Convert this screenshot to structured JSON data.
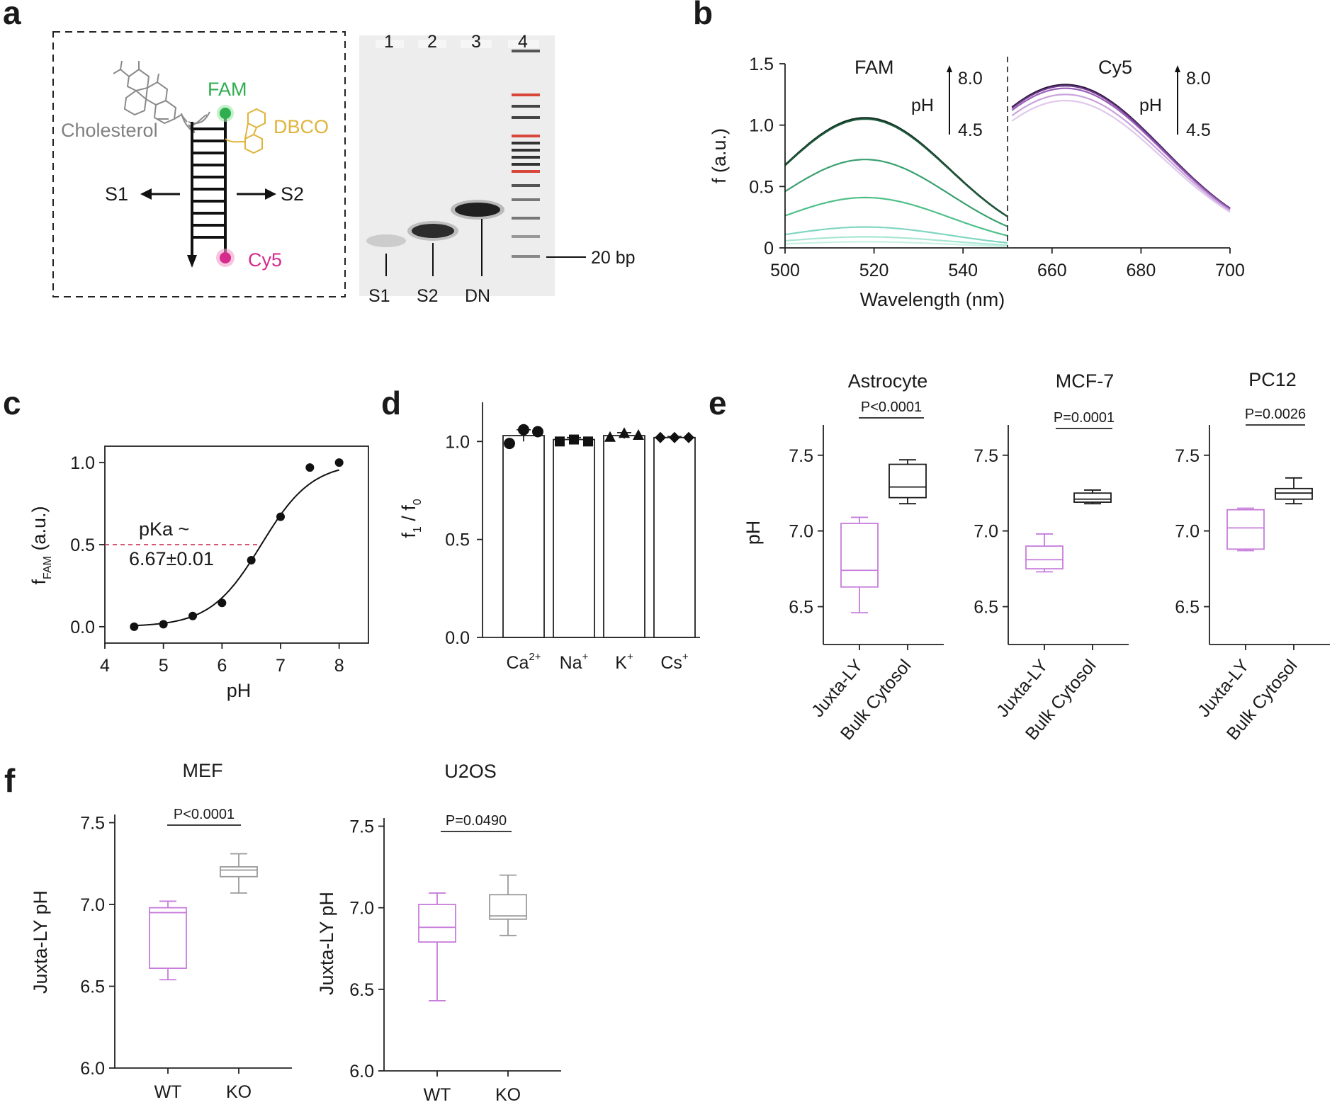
{
  "panels": {
    "a": {
      "letter": "a",
      "labels": {
        "fam": "FAM",
        "cholesterol": "Cholesterol",
        "dbco": "DBCO",
        "s1": "S1",
        "s2": "S2",
        "cy5": "Cy5"
      },
      "gel": {
        "lanes": [
          "1",
          "2",
          "3",
          "4"
        ],
        "bottom_labels": [
          "S1",
          "S2",
          "DN"
        ],
        "marker_label": "20 bp"
      }
    },
    "b": {
      "letter": "b"
    },
    "c": {
      "letter": "c"
    },
    "d": {
      "letter": "d"
    },
    "e": {
      "letter": "e"
    },
    "f": {
      "letter": "f"
    }
  },
  "colors": {
    "fam_green": "#2fae4f",
    "cy5_magenta": "#d62b8c",
    "dbco_yellow": "#e0b33a",
    "cholesterol_gray": "#808080",
    "juxta_purple": "#c77ddb",
    "ko_gray": "#9a9a9a",
    "red_dash": "#d04060"
  },
  "chart_data": [
    {
      "id": "b-FAM",
      "type": "line",
      "title": "FAM",
      "xlabel": "Wavelength (nm)",
      "ylabel": "f (a.u.)",
      "xlim": [
        500,
        550
      ],
      "ylim": [
        0,
        1.5
      ],
      "xticks": [
        500,
        520,
        540
      ],
      "yticks": [
        0,
        0.5,
        1.0,
        1.5
      ],
      "ytick_labels": [
        "0",
        "0.5",
        "1.0",
        "1.5"
      ],
      "annotation": {
        "ph_label": "pH",
        "top": "8.0",
        "bottom": "4.5"
      },
      "series": [
        {
          "peak": 1.06,
          "color": "#0f2a1e"
        },
        {
          "peak": 1.05,
          "color": "#1e5a3c"
        },
        {
          "peak": 0.72,
          "color": "#3aa070"
        },
        {
          "peak": 0.41,
          "color": "#4fbf88"
        },
        {
          "peak": 0.17,
          "color": "#7fd6c0"
        },
        {
          "peak": 0.09,
          "color": "#a8e6d4"
        },
        {
          "peak": 0.05,
          "color": "#c9f0e4"
        }
      ],
      "peak_x": 518
    },
    {
      "id": "b-Cy5",
      "type": "line",
      "title": "Cy5",
      "xlim": [
        650,
        700
      ],
      "ylim": [
        0,
        1.5
      ],
      "xticks": [
        660,
        680,
        700
      ],
      "annotation": {
        "ph_label": "pH",
        "top": "8.0",
        "bottom": "4.5"
      },
      "series": [
        {
          "peak": 1.33,
          "color": "#2a1438"
        },
        {
          "peak": 1.32,
          "color": "#6b3a8a"
        },
        {
          "peak": 1.3,
          "color": "#9a5fb8"
        },
        {
          "peak": 1.25,
          "color": "#c9a2dc"
        },
        {
          "peak": 1.2,
          "color": "#e0c8ec"
        }
      ],
      "peak_x": 663
    },
    {
      "id": "c",
      "type": "scatter",
      "xlabel": "pH",
      "ylabel": "f",
      "ylabel_sub": "FAM",
      "ylabel_rest": " (a.u.)",
      "xlim": [
        4,
        8.5
      ],
      "ylim": [
        -0.1,
        1.1
      ],
      "xticks": [
        4,
        5,
        6,
        7,
        8
      ],
      "yticks": [
        0.0,
        0.5,
        1.0
      ],
      "ytick_labels": [
        "0.0",
        "0.5",
        "1.0"
      ],
      "x": [
        4.5,
        5.0,
        5.5,
        6.0,
        6.5,
        7.0,
        7.5,
        8.0
      ],
      "y": [
        0.0,
        0.015,
        0.065,
        0.145,
        0.405,
        0.67,
        0.97,
        1.0
      ],
      "pka_text_1": "pKa ~",
      "pka_text_2": "6.67±0.01",
      "pka_line_y": 0.5
    },
    {
      "id": "d",
      "type": "bar",
      "ylabel": "f / f",
      "ylabel_sub1": "1",
      "ylabel_sub0": "0",
      "categories": [
        "Ca2+",
        "Na+",
        "K+",
        "Cs+"
      ],
      "category_base": [
        "Ca",
        "Na",
        "K",
        "Cs"
      ],
      "category_sup": [
        "2+",
        "+",
        "+",
        "+"
      ],
      "values": [
        1.03,
        1.01,
        1.03,
        1.02
      ],
      "errors": [
        0.03,
        0.01,
        0.015,
        0.005
      ],
      "points": [
        [
          0.99,
          1.06,
          1.05
        ],
        [
          1.0,
          1.01,
          1.0
        ],
        [
          1.02,
          1.04,
          1.03
        ],
        [
          1.02,
          1.02,
          1.02
        ]
      ],
      "markers": [
        "circle",
        "square",
        "triangle",
        "diamond"
      ],
      "ylim": [
        0,
        1.2
      ],
      "yticks": [
        0.0,
        0.5,
        1.0
      ],
      "ytick_labels": [
        "0.0",
        "0.5",
        "1.0"
      ]
    },
    {
      "id": "e-Astrocyte",
      "type": "box",
      "title": "Astrocyte",
      "ylabel": "pH",
      "ylim": [
        6.25,
        7.7
      ],
      "yticks": [
        6.5,
        7.0,
        7.5
      ],
      "ytick_labels": [
        "6.5",
        "7.0",
        "7.5"
      ],
      "categories": [
        "Juxta-LY",
        "Bulk Cytosol"
      ],
      "boxes": [
        {
          "min": 6.46,
          "q1": 6.63,
          "median": 6.74,
          "q3": 7.05,
          "max": 7.09,
          "color": "#c77ddb"
        },
        {
          "min": 7.18,
          "q1": 7.22,
          "median": 7.29,
          "q3": 7.44,
          "max": 7.47,
          "color": "#1a1a1a"
        }
      ],
      "p_value": "P<0.0001"
    },
    {
      "id": "e-MCF-7",
      "type": "box",
      "title": "MCF-7",
      "ylim": [
        6.25,
        7.7
      ],
      "yticks": [
        6.5,
        7.0,
        7.5
      ],
      "ytick_labels": [
        "6.5",
        "7.0",
        "7.5"
      ],
      "categories": [
        "Juxta-LY",
        "Bulk Cytosol"
      ],
      "boxes": [
        {
          "min": 6.73,
          "q1": 6.75,
          "median": 6.81,
          "q3": 6.9,
          "max": 6.98,
          "color": "#c77ddb"
        },
        {
          "min": 7.18,
          "q1": 7.19,
          "median": 7.21,
          "q3": 7.25,
          "max": 7.27,
          "color": "#1a1a1a"
        }
      ],
      "p_value": "P=0.0001"
    },
    {
      "id": "e-PC12",
      "type": "box",
      "title": "PC12",
      "ylim": [
        6.25,
        7.7
      ],
      "yticks": [
        6.5,
        7.0,
        7.5
      ],
      "ytick_labels": [
        "6.5",
        "7.0",
        "7.5"
      ],
      "categories": [
        "Juxta-LY",
        "Bulk Cytosol"
      ],
      "boxes": [
        {
          "min": 6.87,
          "q1": 6.88,
          "median": 7.02,
          "q3": 7.14,
          "max": 7.15,
          "color": "#c77ddb"
        },
        {
          "min": 7.18,
          "q1": 7.21,
          "median": 7.25,
          "q3": 7.28,
          "max": 7.35,
          "color": "#1a1a1a"
        }
      ],
      "p_value": "P=0.0026"
    },
    {
      "id": "f-MEF",
      "type": "box",
      "title": "MEF",
      "ylabel": "Juxta-LY pH",
      "ylim": [
        6.0,
        7.55
      ],
      "yticks": [
        6.0,
        6.5,
        7.0,
        7.5
      ],
      "ytick_labels": [
        "6.0",
        "6.5",
        "7.0",
        "7.5"
      ],
      "categories": [
        "WT",
        "KO"
      ],
      "boxes": [
        {
          "min": 6.54,
          "q1": 6.61,
          "median": 6.95,
          "q3": 6.98,
          "max": 7.02,
          "color": "#c77ddb"
        },
        {
          "min": 7.07,
          "q1": 7.17,
          "median": 7.21,
          "q3": 7.23,
          "max": 7.31,
          "color": "#9a9a9a"
        }
      ],
      "p_value": "P<0.0001"
    },
    {
      "id": "f-U2OS",
      "type": "box",
      "title": "U2OS",
      "ylabel": "Juxta-LY pH",
      "ylim": [
        6.0,
        7.55
      ],
      "yticks": [
        6.0,
        6.5,
        7.0,
        7.5
      ],
      "ytick_labels": [
        "6.0",
        "6.5",
        "7.0",
        "7.5"
      ],
      "categories": [
        "WT",
        "KO"
      ],
      "boxes": [
        {
          "min": 6.43,
          "q1": 6.79,
          "median": 6.88,
          "q3": 7.02,
          "max": 7.09,
          "color": "#c77ddb"
        },
        {
          "min": 6.83,
          "q1": 6.93,
          "median": 6.95,
          "q3": 7.08,
          "max": 7.2,
          "color": "#9a9a9a"
        }
      ],
      "p_value": "P=0.0490"
    }
  ]
}
